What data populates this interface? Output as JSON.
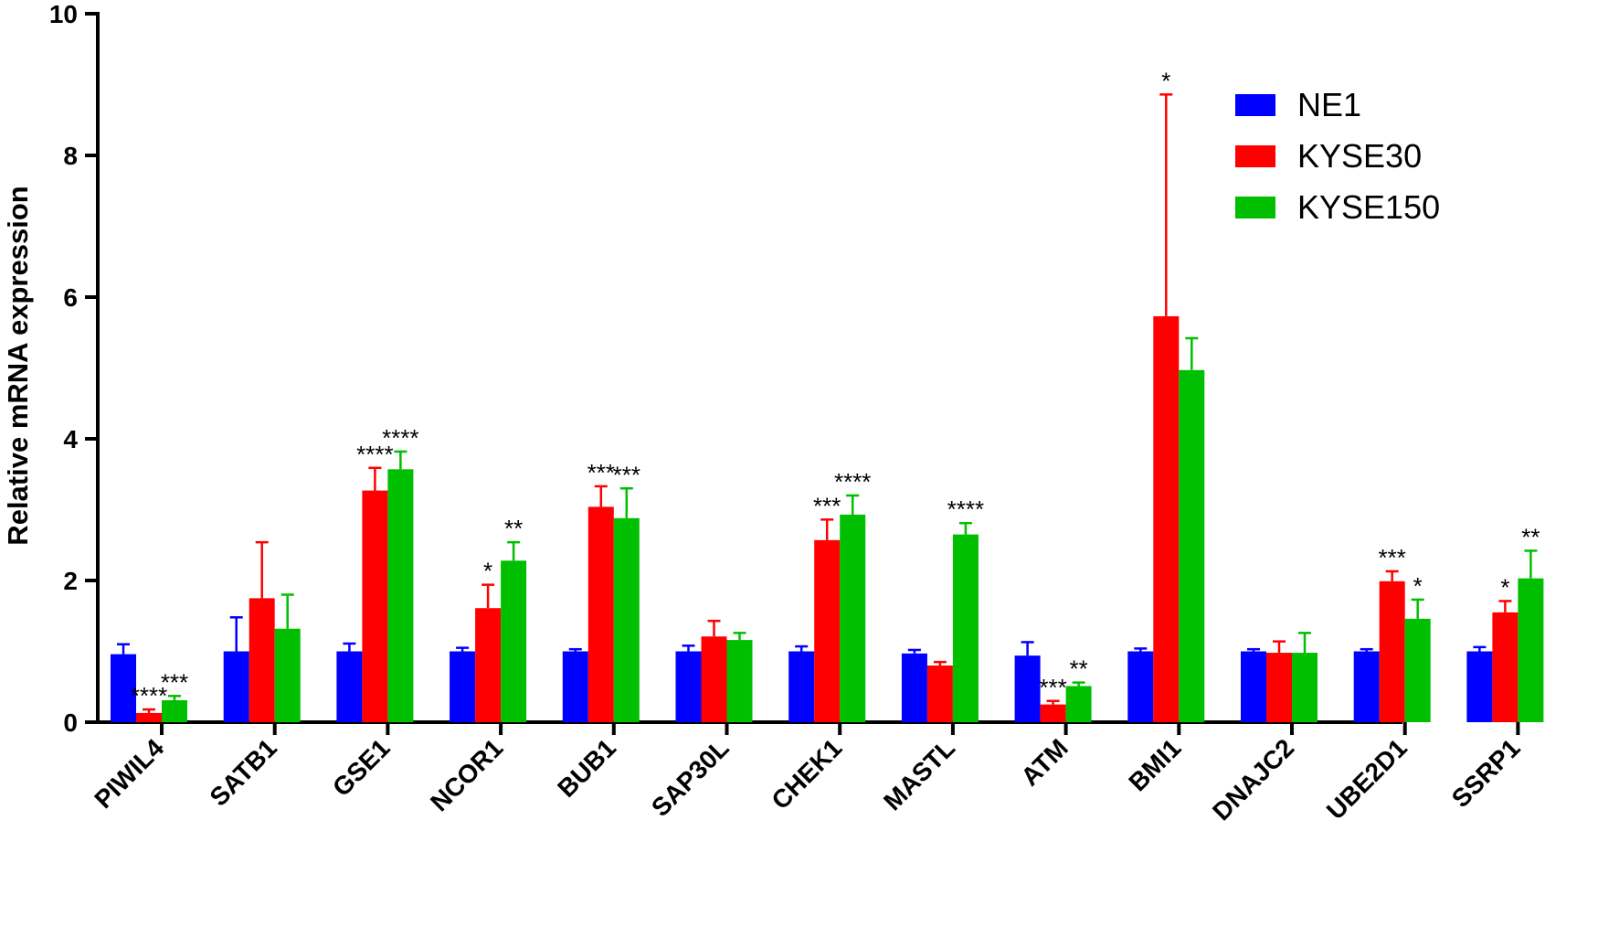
{
  "chart_data": {
    "type": "bar",
    "ylabel": "Relative mRNA expression",
    "xlabel": "",
    "ylim": [
      0,
      10
    ],
    "yticks": [
      "0",
      "2",
      "4",
      "6",
      "8",
      "10"
    ],
    "grid": false,
    "legend_position": "top-right",
    "categories": [
      "PIWIL4",
      "SATB1",
      "GSE1",
      "NCOR1",
      "BUB1",
      "SAP30L",
      "CHEK1",
      "MASTL",
      "ATM",
      "BMI1",
      "DNAJC2",
      "UBE2D1",
      "SSRP1"
    ],
    "series": [
      {
        "name": "NE1",
        "color": "#0000ff",
        "values": [
          0.96,
          1.0,
          1.0,
          1.0,
          1.0,
          1.0,
          1.0,
          0.97,
          0.94,
          1.0,
          1.0,
          1.0,
          1.0
        ],
        "errors": [
          0.14,
          0.48,
          0.11,
          0.05,
          0.03,
          0.08,
          0.07,
          0.05,
          0.19,
          0.04,
          0.03,
          0.03,
          0.06
        ],
        "significance": [
          "",
          "",
          "",
          "",
          "",
          "",
          "",
          "",
          "",
          "",
          "",
          "",
          ""
        ]
      },
      {
        "name": "KYSE30",
        "color": "#ff0000",
        "values": [
          0.13,
          1.75,
          3.27,
          1.61,
          3.04,
          1.21,
          2.57,
          0.8,
          0.25,
          5.73,
          0.98,
          1.99,
          1.55
        ],
        "errors": [
          0.05,
          0.79,
          0.32,
          0.33,
          0.29,
          0.22,
          0.29,
          0.05,
          0.05,
          3.13,
          0.16,
          0.14,
          0.16
        ],
        "significance": [
          "****",
          "",
          "****",
          "*",
          "***",
          "",
          "***",
          "",
          "***",
          "*",
          "",
          "***",
          "*"
        ]
      },
      {
        "name": "KYSE150",
        "color": "#00bf00",
        "values": [
          0.31,
          1.32,
          3.57,
          2.28,
          2.88,
          1.16,
          2.93,
          2.65,
          0.51,
          4.97,
          0.98,
          1.46,
          2.03
        ],
        "errors": [
          0.06,
          0.48,
          0.25,
          0.26,
          0.42,
          0.1,
          0.27,
          0.16,
          0.05,
          0.45,
          0.28,
          0.27,
          0.39
        ],
        "significance": [
          "***",
          "",
          "****",
          "**",
          "***",
          "",
          "****",
          "****",
          "**",
          "",
          "",
          "*",
          "**"
        ]
      }
    ]
  }
}
